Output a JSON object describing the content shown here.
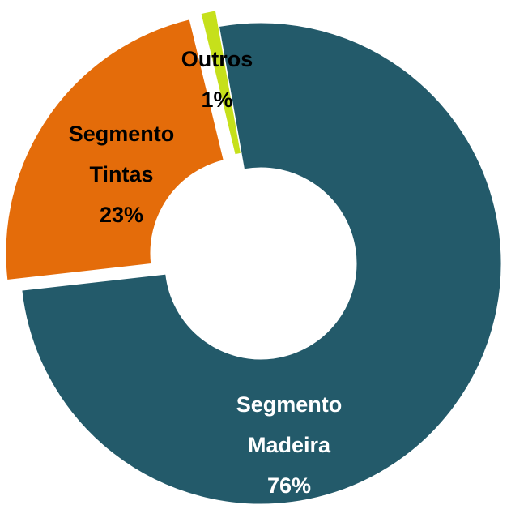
{
  "chart_data": {
    "type": "donut",
    "categories": [
      "Segmento Madeira",
      "Segmento Tintas",
      "Outros"
    ],
    "values": [
      76,
      23,
      1
    ],
    "value_labels": [
      "76%",
      "23%",
      "1%"
    ],
    "colors": [
      "#235a6a",
      "#e46c0a",
      "#c6e01b"
    ]
  }
}
